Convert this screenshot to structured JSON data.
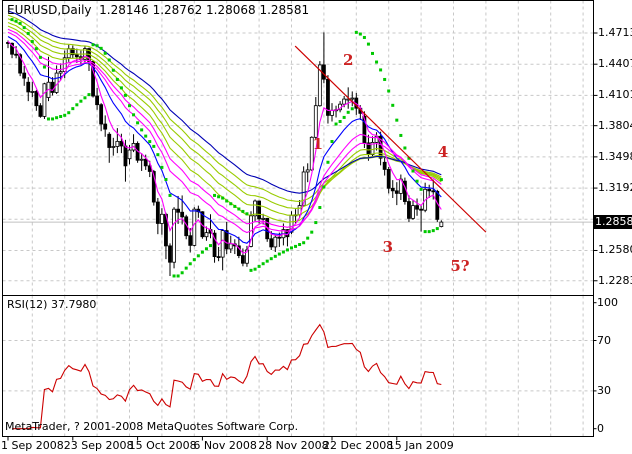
{
  "chart_data": {
    "type": "candlestick",
    "title": "EURUSD,Daily  1.28146 1.28762 1.28068 1.28581",
    "symbol": "EURUSD",
    "period": "Daily",
    "last_bar": {
      "open": 1.28146,
      "high": 1.28762,
      "low": 1.28068,
      "close": 1.28581
    },
    "candles": [
      [
        1.462,
        1.464,
        1.4565,
        1.4612
      ],
      [
        1.4612,
        1.462,
        1.4466,
        1.4505
      ],
      [
        1.4505,
        1.4585,
        1.4465,
        1.45
      ],
      [
        1.45,
        1.4515,
        1.429,
        1.432
      ],
      [
        1.432,
        1.439,
        1.4195,
        1.427
      ],
      [
        1.423,
        1.428,
        1.4045,
        1.4135
      ],
      [
        1.4135,
        1.4235,
        1.4085,
        1.414
      ],
      [
        1.414,
        1.4155,
        1.395,
        1.4
      ],
      [
        1.4,
        1.4025,
        1.3882,
        1.3895
      ],
      [
        1.3895,
        1.4225,
        1.387,
        1.4215
      ],
      [
        1.408,
        1.448,
        1.4045,
        1.423
      ],
      [
        1.423,
        1.428,
        1.41,
        1.413
      ],
      [
        1.413,
        1.4395,
        1.4115,
        1.432
      ],
      [
        1.432,
        1.4415,
        1.425,
        1.4335
      ],
      [
        1.4335,
        1.454,
        1.427,
        1.447
      ],
      [
        1.447,
        1.4598,
        1.443,
        1.456
      ],
      [
        1.456,
        1.459,
        1.4465,
        1.45
      ],
      [
        1.45,
        1.456,
        1.442,
        1.448
      ],
      [
        1.448,
        1.454,
        1.44,
        1.4455
      ],
      [
        1.4455,
        1.458,
        1.441,
        1.456
      ],
      [
        1.456,
        1.457,
        1.434,
        1.4435
      ],
      [
        1.4435,
        1.4445,
        1.408,
        1.4095
      ],
      [
        1.4095,
        1.4175,
        1.396,
        1.401
      ],
      [
        1.401,
        1.4025,
        1.375,
        1.382
      ],
      [
        1.382,
        1.3905,
        1.3695,
        1.377
      ],
      [
        1.372,
        1.374,
        1.344,
        1.359
      ],
      [
        1.359,
        1.3685,
        1.351,
        1.36
      ],
      [
        1.36,
        1.378,
        1.3535,
        1.365
      ],
      [
        1.365,
        1.3725,
        1.3535,
        1.3605
      ],
      [
        1.3605,
        1.3665,
        1.3255,
        1.341
      ],
      [
        1.348,
        1.3615,
        1.3425,
        1.3565
      ],
      [
        1.3565,
        1.372,
        1.3545,
        1.363
      ],
      [
        1.363,
        1.365,
        1.344,
        1.3465
      ],
      [
        1.3465,
        1.3535,
        1.336,
        1.3475
      ],
      [
        1.3475,
        1.352,
        1.337,
        1.341
      ],
      [
        1.341,
        1.346,
        1.33,
        1.3355
      ],
      [
        1.3355,
        1.337,
        1.302,
        1.3055
      ],
      [
        1.3055,
        1.3095,
        1.274,
        1.2845
      ],
      [
        1.2845,
        1.2995,
        1.2735,
        1.2935
      ],
      [
        1.2935,
        1.295,
        1.2495,
        1.2625
      ],
      [
        1.2625,
        1.265,
        1.233,
        1.2465
      ],
      [
        1.2465,
        1.3005,
        1.2405,
        1.2985
      ],
      [
        1.2985,
        1.3115,
        1.284,
        1.2955
      ],
      [
        1.2955,
        1.312,
        1.2835,
        1.291
      ],
      [
        1.291,
        1.293,
        1.269,
        1.2725
      ],
      [
        1.2725,
        1.28,
        1.256,
        1.263
      ],
      [
        1.263,
        1.3005,
        1.262,
        1.2985
      ],
      [
        1.2985,
        1.302,
        1.29,
        1.296
      ],
      [
        1.296,
        1.2965,
        1.2695,
        1.2715
      ],
      [
        1.2715,
        1.2815,
        1.2675,
        1.2755
      ],
      [
        1.2785,
        1.2935,
        1.27,
        1.275
      ],
      [
        1.275,
        1.278,
        1.246,
        1.252
      ],
      [
        1.252,
        1.2615,
        1.2475,
        1.2515
      ],
      [
        1.2515,
        1.279,
        1.2385,
        1.2775
      ],
      [
        1.2775,
        1.286,
        1.2545,
        1.2595
      ],
      [
        1.2595,
        1.2725,
        1.2555,
        1.2645
      ],
      [
        1.2645,
        1.269,
        1.2545,
        1.2625
      ],
      [
        1.2625,
        1.2715,
        1.2505,
        1.253
      ],
      [
        1.253,
        1.26,
        1.2425,
        1.2455
      ],
      [
        1.2455,
        1.2625,
        1.242,
        1.2585
      ],
      [
        1.262,
        1.2965,
        1.261,
        1.292
      ],
      [
        1.292,
        1.308,
        1.2865,
        1.3065
      ],
      [
        1.3065,
        1.307,
        1.2845,
        1.289
      ],
      [
        1.289,
        1.294,
        1.2835,
        1.2895
      ],
      [
        1.2895,
        1.29,
        1.2665,
        1.2695
      ],
      [
        1.2695,
        1.277,
        1.2585,
        1.2615
      ],
      [
        1.2615,
        1.273,
        1.2565,
        1.271
      ],
      [
        1.271,
        1.2755,
        1.2615,
        1.2705
      ],
      [
        1.2705,
        1.2845,
        1.263,
        1.2785
      ],
      [
        1.2785,
        1.279,
        1.262,
        1.2715
      ],
      [
        1.276,
        1.2965,
        1.274,
        1.2925
      ],
      [
        1.2925,
        1.2985,
        1.2845,
        1.293
      ],
      [
        1.293,
        1.3075,
        1.29,
        1.302
      ],
      [
        1.302,
        1.3405,
        1.301,
        1.335
      ],
      [
        1.335,
        1.3435,
        1.325,
        1.337
      ],
      [
        1.337,
        1.37,
        1.336,
        1.369
      ],
      [
        1.369,
        1.4085,
        1.367,
        1.4
      ],
      [
        1.4,
        1.4437,
        1.399,
        1.44
      ],
      [
        1.44,
        1.4719,
        1.422,
        1.426
      ],
      [
        1.426,
        1.43,
        1.3825,
        1.3905
      ],
      [
        1.3905,
        1.4025,
        1.3845,
        1.3955
      ],
      [
        1.3955,
        1.4,
        1.3885,
        1.396
      ],
      [
        1.396,
        1.4045,
        1.3935,
        1.4015
      ],
      [
        1.4015,
        1.4095,
        1.3985,
        1.4065
      ],
      [
        1.4065,
        1.418,
        1.397,
        1.4065
      ],
      [
        1.4065,
        1.414,
        1.3995,
        1.4075
      ],
      [
        1.4075,
        1.4125,
        1.391,
        1.3975
      ],
      [
        1.3975,
        1.4005,
        1.386,
        1.3925
      ],
      [
        1.3895,
        1.3945,
        1.3585,
        1.3635
      ],
      [
        1.3635,
        1.3715,
        1.346,
        1.352
      ],
      [
        1.352,
        1.37,
        1.35,
        1.364
      ],
      [
        1.364,
        1.374,
        1.356,
        1.37
      ],
      [
        1.37,
        1.3745,
        1.3415,
        1.3485
      ],
      [
        1.3445,
        1.349,
        1.3315,
        1.3375
      ],
      [
        1.3375,
        1.34,
        1.314,
        1.319
      ],
      [
        1.319,
        1.327,
        1.3095,
        1.3165
      ],
      [
        1.3165,
        1.325,
        1.3025,
        1.314
      ],
      [
        1.314,
        1.3325,
        1.3075,
        1.328
      ],
      [
        1.326,
        1.3295,
        1.303,
        1.306
      ],
      [
        1.306,
        1.312,
        1.286,
        1.2895
      ],
      [
        1.2895,
        1.3075,
        1.288,
        1.302
      ],
      [
        1.302,
        1.309,
        1.292,
        1.2985
      ],
      [
        1.2985,
        1.303,
        1.2765,
        1.2975
      ],
      [
        1.2975,
        1.3245,
        1.2955,
        1.318
      ],
      [
        1.318,
        1.3225,
        1.3095,
        1.3165
      ],
      [
        1.3165,
        1.3275,
        1.308,
        1.316
      ],
      [
        1.316,
        1.3175,
        1.286,
        1.2885
      ],
      [
        1.28146,
        1.28762,
        1.28068,
        1.28581
      ]
    ],
    "x_axis": {
      "labels": [
        {
          "text": "1 Sep 2008",
          "bar": 0
        },
        {
          "text": "23 Sep 2008",
          "bar": 16
        },
        {
          "text": "15 Oct 2008",
          "bar": 32
        },
        {
          "text": "6 Nov 2008",
          "bar": 48
        },
        {
          "text": "28 Nov 2008",
          "bar": 64
        },
        {
          "text": "22 Dec 2008",
          "bar": 80
        },
        {
          "text": "15 Jan 2009",
          "bar": 96
        }
      ]
    },
    "price_axis": {
      "labels": [
        "1.47130",
        "1.44070",
        "1.41010",
        "1.38040",
        "1.34980",
        "1.31920",
        "1.25800",
        "1.22830"
      ],
      "grid_prices": [
        1.4713,
        1.4407,
        1.4101,
        1.3804,
        1.3498,
        1.3192,
        1.2886,
        1.258,
        1.2283
      ],
      "current": "1.28581",
      "current_price": 1.28581
    },
    "rsi": {
      "label": "RSI(12) 37.7980",
      "period": 12,
      "last_value": 37.798,
      "scale_labels": [
        "100",
        "70",
        "30",
        "0"
      ],
      "grid_levels": [
        70,
        30
      ],
      "line_color": "#cc0000"
    },
    "indicators": {
      "moving_averages": [
        {
          "period": 30,
          "color": "#99cc00"
        },
        {
          "period": 36,
          "color": "#99cc00"
        },
        {
          "period": 42,
          "color": "#99cc00"
        },
        {
          "period": 48,
          "color": "#99cc00"
        },
        {
          "period": 55,
          "color": "#0000b4"
        },
        {
          "period": 13,
          "color": "#0000ff"
        },
        {
          "period": 25,
          "color": "#ff00ff"
        },
        {
          "period": 20,
          "color": "#ff00ff"
        },
        {
          "period": 5,
          "color": "#ff00ff"
        }
      ],
      "parabolic_sar": {
        "step": 0.02,
        "maximum": 0.2,
        "color": "#00c800"
      }
    },
    "trendline": {
      "color": "#cc0000",
      "from": {
        "bar": 70.9,
        "price": 1.4585
      },
      "to": {
        "bar": 118.0,
        "price": 1.276
      }
    },
    "wave_labels": [
      {
        "text": "1",
        "bar": 76.5,
        "price": 1.3615
      },
      {
        "text": "2",
        "bar": 84.0,
        "price": 1.4438
      },
      {
        "text": "3",
        "bar": 93.8,
        "price": 1.2604
      },
      {
        "text": "4",
        "bar": 107.4,
        "price": 1.3536
      },
      {
        "text": "5?",
        "bar": 111.6,
        "price": 1.2418
      }
    ],
    "colors": {
      "background": "#ffffff",
      "grid": "#c8c8c8",
      "border": "#000000",
      "bull_candle": "#ffffff",
      "bear_candle": "#000000",
      "current_price_line": "#c0c0c0",
      "badge_bg": "#000000",
      "badge_text": "#ffffff"
    },
    "copyright": "MetaTrader, ? 2001-2008 MetaQuotes Software Corp."
  }
}
